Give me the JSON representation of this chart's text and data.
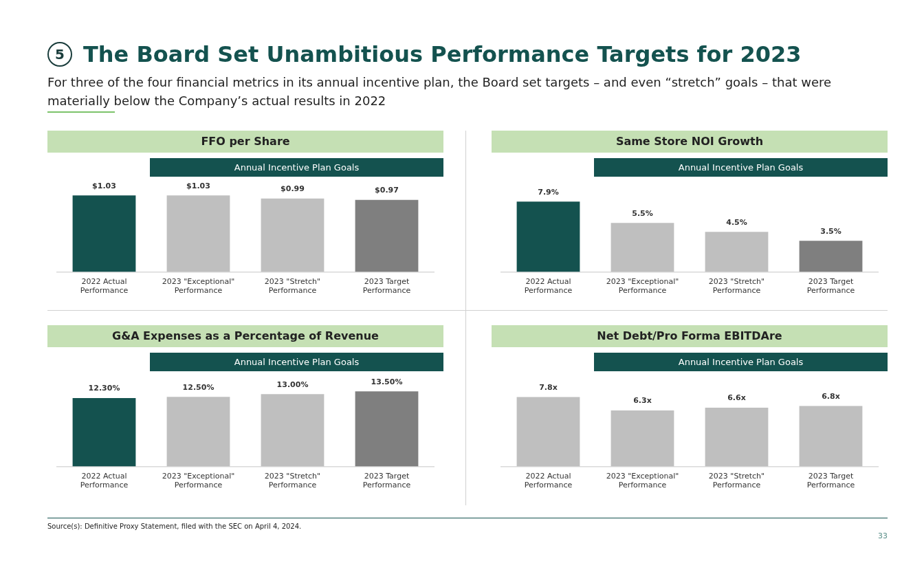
{
  "chart_data": [
    {
      "type": "other",
      "title": "The Board Set Unambitious Performance Targets for 2023",
      "subtitle": "For three of the four financial metrics in its annual incentive plan, the Board set targets – and even “stretch” goals – that were materially below the Company’s actual results in 2022",
      "annotations": [
        "5"
      ]
    },
    {
      "type": "bar",
      "title": "FFO per Share",
      "annotations": [
        "Annual Incentive Plan Goals"
      ],
      "categories": [
        "2022 Actual Performance",
        "2023 \"Exceptional\" Performance",
        "2023 \"Stretch\" Performance",
        "2023 Target Performance"
      ],
      "values": [
        1.03,
        1.03,
        0.99,
        0.97
      ],
      "colors": [
        "#14524f",
        "#bfbfbf",
        "#bfbfbf",
        "#7f7f7f"
      ],
      "value_labels": [
        "$1.03",
        "$1.03",
        "$0.99",
        "$0.97"
      ],
      "tick_labels": "x"
    },
    {
      "type": "bar",
      "title": "Same Store NOI Growth",
      "annotations": [
        "Annual Incentive Plan Goals"
      ],
      "categories": [
        "2022 Actual Performance",
        "2023 \"Exceptional\" Performance",
        "2023 \"Stretch\" Performance",
        "2023 Target Performance"
      ],
      "values": [
        7.9,
        5.5,
        4.5,
        3.5
      ],
      "colors": [
        "#14524f",
        "#bfbfbf",
        "#bfbfbf",
        "#7f7f7f"
      ],
      "value_labels": [
        "7.9%",
        "5.5%",
        "4.5%",
        "3.5%"
      ],
      "tick_labels": "x"
    },
    {
      "type": "bar",
      "title": "G&A Expenses as a Percentage of Revenue",
      "annotations": [
        "Annual Incentive Plan Goals"
      ],
      "categories": [
        "2022 Actual Performance",
        "2023 \"Exceptional\" Performance",
        "2023 \"Stretch\" Performance",
        "2023 Target Performance"
      ],
      "values": [
        12.3,
        12.5,
        13.0,
        13.5
      ],
      "colors": [
        "#14524f",
        "#bfbfbf",
        "#bfbfbf",
        "#7f7f7f"
      ],
      "value_labels": [
        "12.30%",
        "12.50%",
        "13.00%",
        "13.50%"
      ],
      "tick_labels": "x"
    },
    {
      "type": "bar",
      "title": "Net Debt/Pro Forma EBITDAre",
      "annotations": [
        "Annual Incentive Plan Goals"
      ],
      "categories": [
        "2022 Actual Performance",
        "2023 \"Exceptional\" Performance",
        "2023 \"Stretch\" Performance",
        "2023 Target Performance"
      ],
      "values": [
        7.8,
        6.3,
        6.6,
        6.8
      ],
      "colors": [
        "#bfbfbf",
        "#bfbfbf",
        "#bfbfbf",
        "#bfbfbf"
      ],
      "value_labels": [
        "7.8x",
        "6.3x",
        "6.6x",
        "6.8x"
      ],
      "tick_labels": "x"
    },
    {
      "type": "other",
      "annotations": [
        "Source(s): Definitive Proxy Statement, filed with the SEC on April 4, 2024.",
        "33"
      ]
    }
  ]
}
